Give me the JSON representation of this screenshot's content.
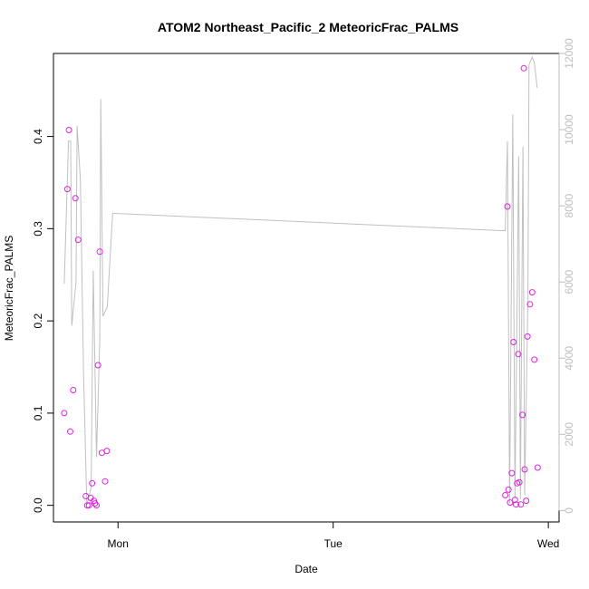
{
  "colors": {
    "points": "#e020e0",
    "line": "#c0c0c0",
    "right_axis": "#bebebe",
    "frame": "#000000"
  },
  "chart_data": {
    "type": "scatter",
    "title": "ATOM2 Northeast_Pacific_2 MeteoricFrac_PALMS",
    "xlabel": "Date",
    "ylabel": "MeteoricFrac_PALMS",
    "x_ticks": [
      {
        "label": "Mon",
        "value": 0.0
      },
      {
        "label": "Tue",
        "value": 1.0
      },
      {
        "label": "Wed",
        "value": 2.0
      }
    ],
    "xlim": [
      -0.3,
      2.05
    ],
    "ylim": [
      -0.018,
      0.49
    ],
    "y_ticks": [
      "0.0",
      "0.1",
      "0.2",
      "0.3",
      "0.4"
    ],
    "y_tick_values": [
      0.0,
      0.1,
      0.2,
      0.3,
      0.4
    ],
    "y2lim": [
      -300,
      12000
    ],
    "y2_ticks": [
      "0",
      "2000",
      "4000",
      "6000",
      "8000",
      "10000",
      "12000"
    ],
    "y2_tick_values": [
      0,
      2000,
      4000,
      6000,
      8000,
      10000,
      12000
    ],
    "grid": false,
    "series": [
      {
        "type": "scatter",
        "axis": "left",
        "points": [
          [
            -0.25,
            0.1
          ],
          [
            -0.235,
            0.343
          ],
          [
            -0.228,
            0.407
          ],
          [
            -0.222,
            0.08
          ],
          [
            -0.208,
            0.125
          ],
          [
            -0.198,
            0.333
          ],
          [
            -0.185,
            0.288
          ],
          [
            -0.15,
            0.01
          ],
          [
            -0.143,
            0.0
          ],
          [
            -0.135,
            0.0
          ],
          [
            -0.127,
            0.008
          ],
          [
            -0.12,
            0.024
          ],
          [
            -0.112,
            0.005
          ],
          [
            -0.107,
            0.002
          ],
          [
            -0.1,
            0.0
          ],
          [
            -0.093,
            0.152
          ],
          [
            -0.085,
            0.275
          ],
          [
            -0.075,
            0.057
          ],
          [
            -0.06,
            0.026
          ],
          [
            -0.052,
            0.059
          ],
          [
            1.8,
            0.011
          ],
          [
            1.81,
            0.324
          ],
          [
            1.815,
            0.017
          ],
          [
            1.822,
            0.003
          ],
          [
            1.83,
            0.035
          ],
          [
            1.838,
            0.177
          ],
          [
            1.845,
            0.006
          ],
          [
            1.85,
            0.001
          ],
          [
            1.855,
            0.024
          ],
          [
            1.86,
            0.164
          ],
          [
            1.865,
            0.025
          ],
          [
            1.872,
            0.001
          ],
          [
            1.88,
            0.098
          ],
          [
            1.886,
            0.474
          ],
          [
            1.89,
            0.039
          ],
          [
            1.897,
            0.005
          ],
          [
            1.903,
            0.183
          ],
          [
            1.915,
            0.218
          ],
          [
            1.925,
            0.231
          ],
          [
            1.935,
            0.158
          ],
          [
            1.95,
            0.041
          ]
        ]
      },
      {
        "type": "line",
        "axis": "right",
        "points": [
          [
            -0.25,
            5950
          ],
          [
            -0.23,
            9700
          ],
          [
            -0.22,
            9700
          ],
          [
            -0.215,
            4850
          ],
          [
            -0.195,
            6000
          ],
          [
            -0.19,
            10100
          ],
          [
            -0.175,
            8700
          ],
          [
            -0.16,
            3600
          ],
          [
            -0.145,
            150
          ],
          [
            -0.125,
            600
          ],
          [
            -0.115,
            6300
          ],
          [
            -0.1,
            1400
          ],
          [
            -0.085,
            4500
          ],
          [
            -0.08,
            10800
          ],
          [
            -0.07,
            5100
          ],
          [
            -0.05,
            5350
          ],
          [
            -0.025,
            7800
          ],
          [
            -0.015,
            7800
          ],
          [
            1.78,
            7350
          ],
          [
            1.8,
            7350
          ],
          [
            1.81,
            9700
          ],
          [
            1.82,
            200
          ],
          [
            1.835,
            10400
          ],
          [
            1.845,
            300
          ],
          [
            1.862,
            9300
          ],
          [
            1.87,
            300
          ],
          [
            1.882,
            9550
          ],
          [
            1.89,
            400
          ],
          [
            1.905,
            5550
          ],
          [
            1.91,
            11700
          ],
          [
            1.925,
            11900
          ],
          [
            1.935,
            11750
          ],
          [
            1.948,
            11100
          ]
        ]
      }
    ]
  }
}
